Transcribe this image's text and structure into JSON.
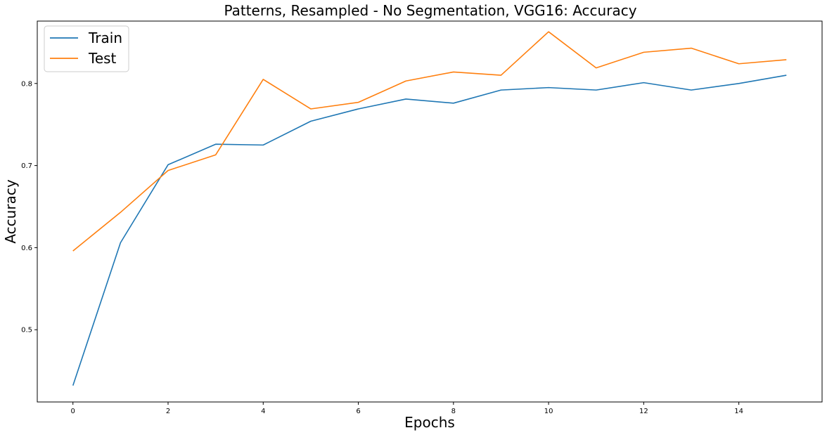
{
  "chart_data": {
    "type": "line",
    "title": "Patterns, Resampled - No Segmentation, VGG16: Accuracy",
    "xlabel": "Epochs",
    "ylabel": "Accuracy",
    "x": [
      0,
      1,
      2,
      3,
      4,
      5,
      6,
      7,
      8,
      9,
      10,
      11,
      12,
      13,
      14,
      15
    ],
    "xlim": [
      -0.75,
      15.75
    ],
    "ylim": [
      0.412,
      0.876
    ],
    "xticks": [
      0,
      2,
      4,
      6,
      8,
      10,
      12,
      14
    ],
    "xtick_labels": [
      "0",
      "2",
      "4",
      "6",
      "8",
      "10",
      "12",
      "14"
    ],
    "yticks": [
      0.5,
      0.6,
      0.7,
      0.8
    ],
    "ytick_labels": [
      "0.5",
      "0.6",
      "0.7",
      "0.8"
    ],
    "grid": false,
    "legend_position": "top-left",
    "series": [
      {
        "name": "Train",
        "color": "#1f77b4",
        "values": [
          0.432,
          0.606,
          0.701,
          0.726,
          0.725,
          0.754,
          0.769,
          0.781,
          0.776,
          0.792,
          0.795,
          0.792,
          0.801,
          0.792,
          0.8,
          0.81
        ]
      },
      {
        "name": "Test",
        "color": "#ff7f0e",
        "values": [
          0.596,
          0.643,
          0.694,
          0.713,
          0.805,
          0.769,
          0.777,
          0.803,
          0.814,
          0.81,
          0.863,
          0.819,
          0.838,
          0.843,
          0.824,
          0.829
        ]
      }
    ]
  }
}
